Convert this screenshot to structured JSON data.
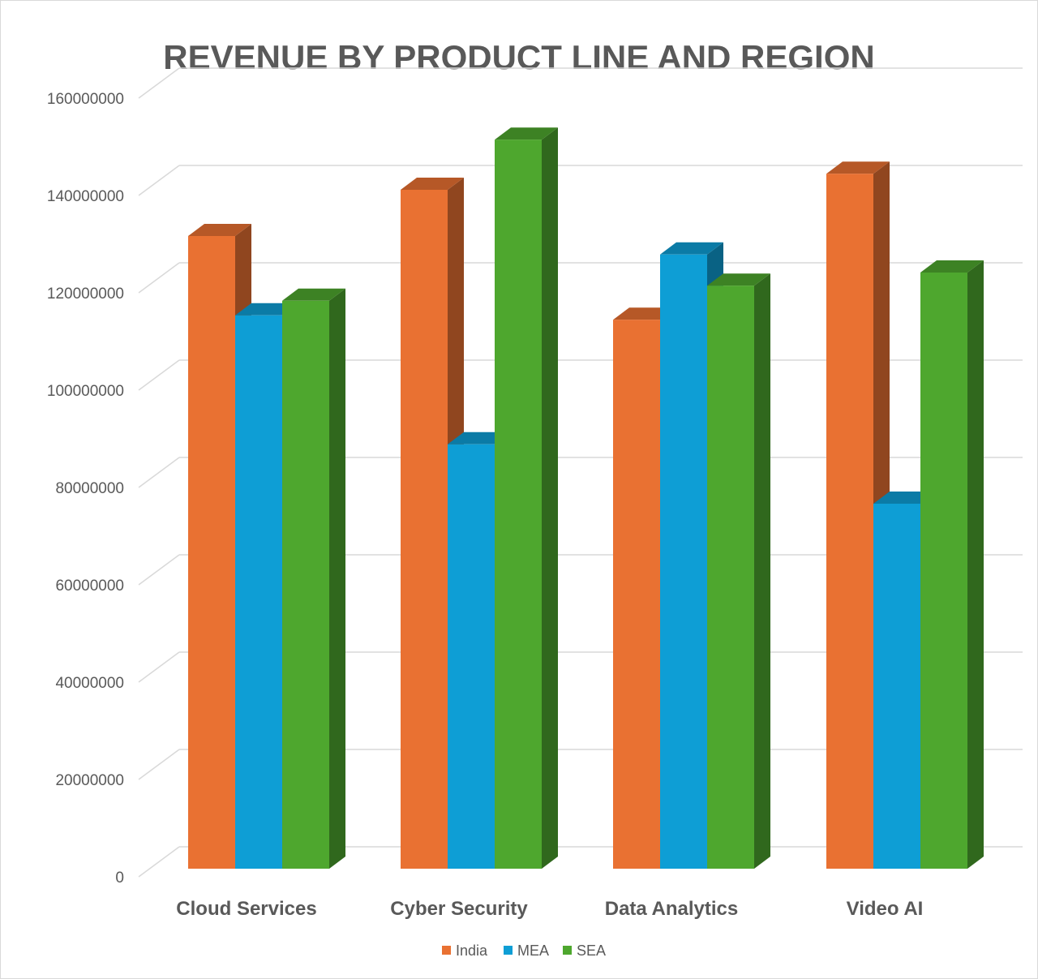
{
  "chart_data": {
    "type": "bar",
    "variant": "3d-clustered-column",
    "title": "REVENUE BY PRODUCT LINE AND REGION",
    "xlabel": "",
    "ylabel": "",
    "categories": [
      "Cloud Services",
      "Cyber Security",
      "Data Analytics",
      "Video AI"
    ],
    "series": [
      {
        "name": "India",
        "color": "#E97132",
        "values": [
          130000000,
          139500000,
          112800000,
          142800000
        ]
      },
      {
        "name": "MEA",
        "color": "#0E9ED5",
        "values": [
          113700000,
          87200000,
          126200000,
          75000000
        ]
      },
      {
        "name": "SEA",
        "color": "#4EA72E",
        "values": [
          116700000,
          149800000,
          119800000,
          122500000
        ]
      }
    ],
    "ylim": [
      0,
      160000000
    ],
    "yticks": [
      "0",
      "20000000",
      "40000000",
      "60000000",
      "80000000",
      "100000000",
      "120000000",
      "140000000",
      "160000000"
    ],
    "grid": true,
    "legend_position": "bottom"
  }
}
